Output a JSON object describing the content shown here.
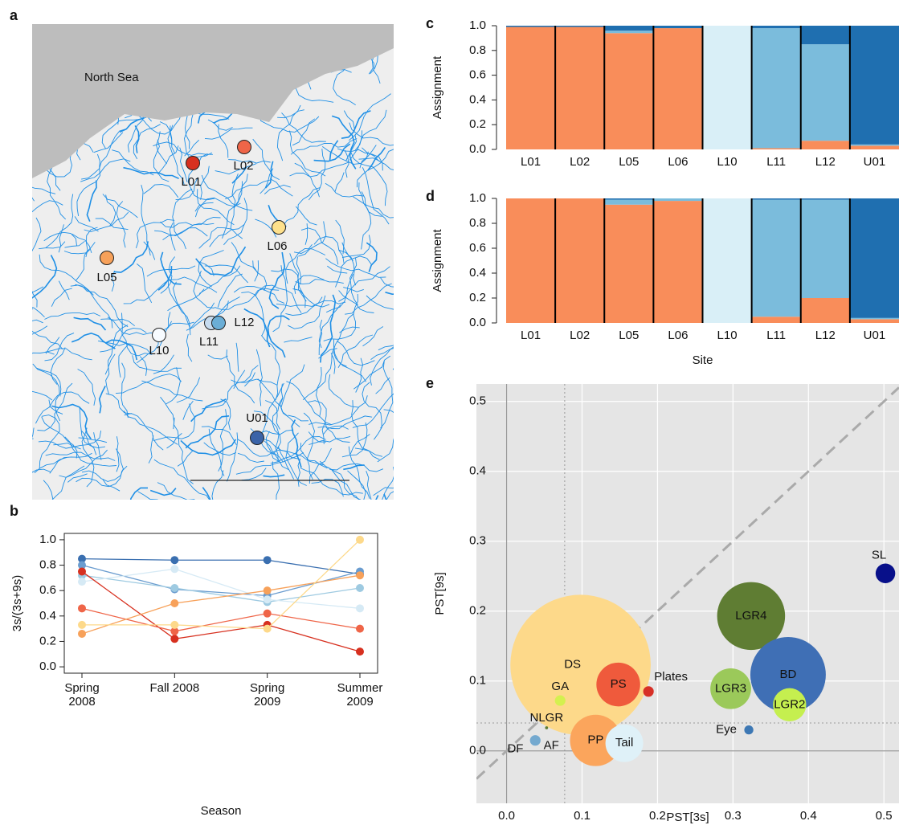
{
  "panel_labels": [
    "a",
    "b",
    "c",
    "d",
    "e"
  ],
  "map": {
    "sea_label": "North Sea",
    "sites": [
      {
        "label": "L01",
        "color": "#d7301f"
      },
      {
        "label": "L02",
        "color": "#ef6548"
      },
      {
        "label": "L05",
        "color": "#f7a15a"
      },
      {
        "label": "L06",
        "color": "#fee08b"
      },
      {
        "label": "L10",
        "color": "#f7fbff"
      },
      {
        "label": "L11",
        "color": "#c6dbef"
      },
      {
        "label": "L12",
        "color": "#6baed6"
      },
      {
        "label": "U01",
        "color": "#3a63a8"
      }
    ]
  },
  "chart_data": [
    {
      "type": "line",
      "xlabel": "Season",
      "ylabel": "3s/(3s+9s)",
      "categories": [
        "Spring 2008",
        "Fall 2008",
        "Spring 2009",
        "Summer 2009"
      ],
      "ylim": [
        -0.05,
        1.05
      ],
      "yticks": [
        {
          "value": 0,
          "label": "0.0"
        },
        0.2,
        0.4,
        0.6,
        0.8,
        {
          "value": 1,
          "label": "1.0"
        }
      ],
      "series": [
        {
          "color": "#3a6fb0",
          "values": [
            0.85,
            0.84,
            0.84,
            0.73
          ]
        },
        {
          "color": "#6a9ccf",
          "values": [
            0.8,
            0.61,
            0.56,
            0.75
          ]
        },
        {
          "color": "#9ecae1",
          "values": [
            0.72,
            0.62,
            0.51,
            0.62
          ]
        },
        {
          "color": "#d6eaf5",
          "values": [
            0.67,
            0.77,
            0.53,
            0.46
          ]
        },
        {
          "color": "#d7301f",
          "values": [
            0.75,
            0.22,
            0.33,
            0.12
          ]
        },
        {
          "color": "#ef6548",
          "values": [
            0.46,
            0.28,
            0.42,
            0.3
          ]
        },
        {
          "color": "#f7a15a",
          "values": [
            0.26,
            0.5,
            0.6,
            0.72
          ]
        },
        {
          "color": "#fdd98a",
          "values": [
            0.33,
            0.33,
            0.3,
            1.0
          ]
        }
      ]
    },
    {
      "type": "stacked_bar",
      "ylabel": "Assignment",
      "categories": [
        "L01",
        "L02",
        "L05",
        "L06",
        "L10",
        "L11",
        "L12",
        "U01"
      ],
      "ylim": [
        0,
        1
      ],
      "yticks": [
        {
          "value": 0,
          "label": "0.0"
        },
        0.2,
        0.4,
        0.6,
        0.8,
        {
          "value": 1,
          "label": "1.0"
        }
      ],
      "series": [
        {
          "color": "#f98d5a",
          "values": [
            0.99,
            0.99,
            0.94,
            0.98,
            0,
            0.01,
            0.07,
            0.03
          ]
        },
        {
          "color": "#d9eff7",
          "values": [
            0,
            0,
            0,
            0,
            1.0,
            0,
            0,
            0
          ]
        },
        {
          "color": "#7bbcdc",
          "values": [
            0,
            0,
            0.02,
            0,
            0,
            0.97,
            0.78,
            0.01
          ]
        },
        {
          "color": "#1f6fb0",
          "values": [
            0.01,
            0.01,
            0.04,
            0.02,
            0,
            0.02,
            0.15,
            0.96
          ]
        }
      ]
    },
    {
      "type": "stacked_bar",
      "ylabel": "Assignment",
      "xlabel": "Site",
      "categories": [
        "L01",
        "L02",
        "L05",
        "L06",
        "L10",
        "L11",
        "L12",
        "U01"
      ],
      "ylim": [
        0,
        1
      ],
      "yticks": [
        {
          "value": 0,
          "label": "0.0"
        },
        0.2,
        0.4,
        0.6,
        0.8,
        {
          "value": 1,
          "label": "1.0"
        }
      ],
      "series": [
        {
          "color": "#f98d5a",
          "values": [
            1.0,
            1.0,
            0.95,
            0.98,
            0,
            0.05,
            0.2,
            0.03
          ]
        },
        {
          "color": "#d9eff7",
          "values": [
            0,
            0,
            0,
            0,
            1.0,
            0,
            0,
            0
          ]
        },
        {
          "color": "#7bbcdc",
          "values": [
            0,
            0,
            0.04,
            0.02,
            0,
            0.94,
            0.79,
            0.01
          ]
        },
        {
          "color": "#1f6fb0",
          "values": [
            0,
            0,
            0.01,
            0,
            0,
            0.01,
            0.01,
            0.96
          ]
        }
      ]
    },
    {
      "type": "bubble",
      "xlabel": "PST[3s]",
      "ylabel": "PST[9s]",
      "xlim": [
        -0.04,
        0.52
      ],
      "ylim": [
        -0.075,
        0.525
      ],
      "xticks": [
        {
          "value": 0,
          "label": "0.0"
        },
        0.1,
        0.2,
        0.3,
        0.4,
        0.5
      ],
      "yticks": [
        {
          "value": 0,
          "label": "0.0"
        },
        0.1,
        0.2,
        0.3,
        0.4,
        0.5
      ],
      "grid": true,
      "diagonal": true,
      "ref_x": 0.077,
      "ref_y": 0.04,
      "points": [
        {
          "label": "DS",
          "x": 0.098,
          "y": 0.123,
          "size": 0.093,
          "color": "#fdd98a"
        },
        {
          "label": "LGR4",
          "x": 0.324,
          "y": 0.193,
          "size": 0.045,
          "color": "#5f7d33"
        },
        {
          "label": "BD",
          "x": 0.373,
          "y": 0.109,
          "size": 0.05,
          "color": "#3f6fb5"
        },
        {
          "label": "LGR3",
          "x": 0.297,
          "y": 0.089,
          "size": 0.027,
          "color": "#9bc95a"
        },
        {
          "label": "LGR2",
          "x": 0.375,
          "y": 0.066,
          "size": 0.022,
          "color": "#c5ef4f"
        },
        {
          "label": "PS",
          "x": 0.148,
          "y": 0.095,
          "size": 0.029,
          "color": "#ef5a3c"
        },
        {
          "label": "PP",
          "x": 0.118,
          "y": 0.015,
          "size": 0.034,
          "color": "#fba55c"
        },
        {
          "label": "Tail",
          "x": 0.156,
          "y": 0.011,
          "size": 0.025,
          "color": "#dff1f8"
        },
        {
          "label": "Plates",
          "x": 0.188,
          "y": 0.085,
          "size": 0.007,
          "color": "#d73027"
        },
        {
          "label": "GA",
          "x": 0.071,
          "y": 0.072,
          "size": 0.007,
          "color": "#d4f04f"
        },
        {
          "label": "NLGR",
          "x": 0.053,
          "y": 0.033,
          "size": 0.002,
          "color": "#5f7d33"
        },
        {
          "label": "DF",
          "x": 0.035,
          "y": 0.013,
          "size": 0.001,
          "color": "#3f6fb5"
        },
        {
          "label": "AF",
          "x": 0.038,
          "y": 0.015,
          "size": 0.007,
          "color": "#74a9cf"
        },
        {
          "label": "Eye",
          "x": 0.321,
          "y": 0.03,
          "size": 0.006,
          "color": "#3d78b4"
        },
        {
          "label": "SL",
          "x": 0.502,
          "y": 0.254,
          "size": 0.013,
          "color": "#08108a"
        }
      ]
    }
  ]
}
